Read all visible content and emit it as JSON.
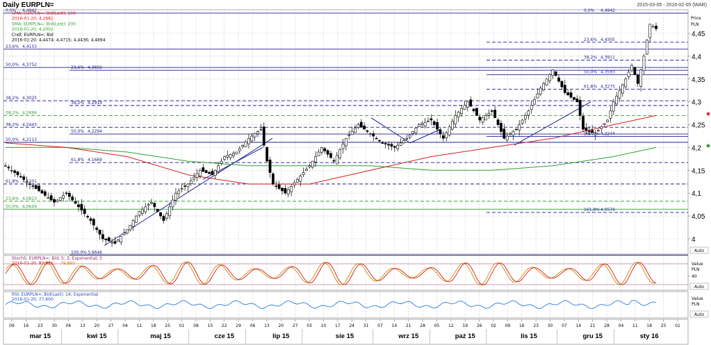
{
  "header": {
    "title": "Daily EURPLN=",
    "date_range": "2015-03-05 - 2016-02-05 (WAR)"
  },
  "legend_main": [
    {
      "text": "SMA; EURPLN=; Bid(Last); 100",
      "color": "#d02020"
    },
    {
      "text": "2016-01-20; 4,2682",
      "color": "#d02020"
    },
    {
      "text": "SMA; EURPLN=; Bid(Last); 200",
      "color": "#30a030"
    },
    {
      "text": "2016-01-20; 4,2002",
      "color": "#30a030"
    },
    {
      "text": "Cndl; EURPLN=; Bid",
      "color": "#000000"
    },
    {
      "text": "2016-01-20; 4,4474; 4,4715; 4,4436; 4,4694",
      "color": "#000000"
    }
  ],
  "price_axis": {
    "title_line1": "Price",
    "title_line2": "PLN",
    "ticks": [
      {
        "v": 4.45,
        "label": "4,45"
      },
      {
        "v": 4.4,
        "label": "4,4"
      },
      {
        "v": 4.35,
        "label": "4,35"
      },
      {
        "v": 4.3,
        "label": "4,3"
      },
      {
        "v": 4.25,
        "label": "4,25"
      },
      {
        "v": 4.2,
        "label": "4,2"
      },
      {
        "v": 4.15,
        "label": "4,15"
      },
      {
        "v": 4.1,
        "label": "4,1"
      },
      {
        "v": 4.05,
        "label": "4,05"
      },
      {
        "v": 4.0,
        "label": "4"
      }
    ],
    "auto_label": "Auto",
    "ylim": [
      3.96,
      4.5
    ]
  },
  "fib_levels": [
    {
      "v": 4.4942,
      "label": "0,0%",
      "value_label": "4,4942",
      "color": "#1f1f8f",
      "style": "solid"
    },
    {
      "v": 4.4942,
      "label": "0,0%",
      "value_label": "4,4942",
      "color": "#1f1f8f",
      "style": "solid",
      "side": "right"
    },
    {
      "v": 4.4153,
      "label": "23,6%",
      "value_label": "4,4153",
      "color": "#1f1f8f",
      "style": "solid"
    },
    {
      "v": 4.4305,
      "label": "23,6%",
      "value_label": "4,4305",
      "color": "#1f1f8f",
      "style": "dash",
      "side": "right"
    },
    {
      "v": 4.3911,
      "label": "38,2%",
      "value_label": "4,3911",
      "color": "#1f1f8f",
      "style": "dash",
      "side": "right"
    },
    {
      "v": 4.3752,
      "label": "50,0%",
      "value_label": "4,3752",
      "color": "#1f1f8f",
      "style": "solid"
    },
    {
      "v": 4.3692,
      "label": "23,6%",
      "value_label": "4,3692",
      "color": "#1f1f8f",
      "style": "solid",
      "side": "mid"
    },
    {
      "v": 4.3593,
      "label": "50,0%",
      "value_label": "4,3593",
      "color": "#1f1f8f",
      "style": "solid",
      "side": "right"
    },
    {
      "v": 4.3275,
      "label": "61,8%",
      "value_label": "4,3275",
      "color": "#1f1f8f",
      "style": "dash",
      "side": "right"
    },
    {
      "v": 4.3025,
      "label": "38,2%",
      "value_label": "4,3025",
      "color": "#1f1f8f",
      "style": "dash"
    },
    {
      "v": 4.2919,
      "label": "38,2%",
      "value_label": "4,2919",
      "color": "#1f1f8f",
      "style": "dash",
      "side": "mid"
    },
    {
      "v": 4.2699,
      "label": "38,2%",
      "value_label": "4,2699",
      "color": "#30a030",
      "style": "dash"
    },
    {
      "v": 4.2443,
      "label": "38,2%",
      "value_label": "4,2443",
      "color": "#1f1f8f",
      "style": "dash"
    },
    {
      "v": 4.2294,
      "label": "50,0%",
      "value_label": "4,2294",
      "color": "#1f1f8f",
      "style": "solid",
      "side": "mid"
    },
    {
      "v": 4.2244,
      "label": "100,0%",
      "value_label": "4,2244",
      "color": "#1f1f8f",
      "style": "solid",
      "side": "right"
    },
    {
      "v": 4.2113,
      "label": "50,0%",
      "value_label": "4,2113",
      "color": "#1f1f8f",
      "style": "solid"
    },
    {
      "v": 4.1669,
      "label": "61,8%",
      "value_label": "4,1669",
      "color": "#1f1f8f",
      "style": "dash",
      "side": "mid"
    },
    {
      "v": 4.1201,
      "label": "61,8%",
      "value_label": "4,1201",
      "color": "#1f1f8f",
      "style": "dash"
    },
    {
      "v": 4.0823,
      "label": "23,6%",
      "value_label": "4,0823",
      "color": "#30a030",
      "style": "dash"
    },
    {
      "v": 4.0649,
      "label": "50,0%",
      "value_label": "4,0649",
      "color": "#30a030",
      "style": "solid"
    },
    {
      "v": 4.0576,
      "label": "161,8%",
      "value_label": "4,0576",
      "color": "#1f1f8f",
      "style": "dash",
      "side": "right"
    },
    {
      "v": 3.9646,
      "label": "100,0%",
      "value_label": "3,9646",
      "color": "#1f1f8f",
      "style": "solid",
      "side": "mid"
    }
  ],
  "stoch_panel": {
    "legend_line1": "StochS; EURPLN=; Bid; 5; 3; Exponential; 3",
    "legend_line2_a": "2016-01-20; 80,821;",
    "legend_line2_b": "79,893",
    "axis_title1": "Value",
    "axis_title2": "PLN",
    "tick_label": "40",
    "auto_label": "Auto"
  },
  "rsi_panel": {
    "legend_line1": "RSI; EURPLN=; Bid(Last); 14; Exponential",
    "legend_line2": "2016-01-20; 77,600",
    "axis_title1": "Value",
    "axis_title2": "PLN",
    "auto_label": "Auto"
  },
  "x_axis": {
    "day_ticks": [
      "09",
      "16",
      "23",
      "30",
      "06",
      "13",
      "20",
      "27",
      "04",
      "11",
      "18",
      "25",
      "01",
      "08",
      "15",
      "22",
      "29",
      "06",
      "13",
      "20",
      "27",
      "03",
      "10",
      "17",
      "24",
      "31",
      "07",
      "14",
      "21",
      "28",
      "05",
      "12",
      "19",
      "26",
      "02",
      "09",
      "16",
      "23",
      "30",
      "07",
      "14",
      "21",
      "28",
      "04",
      "11",
      "18",
      "25",
      "01"
    ],
    "months": [
      "mar 15",
      "kwi 15",
      "maj 15",
      "cze 15",
      "lip 15",
      "sie 15",
      "wrz 15",
      "paź 15",
      "lis 15",
      "gru 15",
      "sty 16"
    ]
  },
  "chart_data": {
    "type": "candlestick",
    "title": "Daily EURPLN=",
    "x_range": [
      "2015-03-05",
      "2016-02-05"
    ],
    "ylim": [
      3.96,
      4.5
    ],
    "grid": true,
    "series": [
      {
        "name": "Cndl; EURPLN=; Bid",
        "last_ohlc": [
          4.4474,
          4.4715,
          4.4436,
          4.4694
        ]
      },
      {
        "name": "SMA; EURPLN=; Bid(Last); 100",
        "last": 4.2682,
        "color": "#d02020"
      },
      {
        "name": "SMA; EURPLN=; Bid(Last); 200",
        "last": 4.2002,
        "color": "#30a030"
      }
    ],
    "close_path": [
      [
        0,
        4.16
      ],
      [
        4,
        4.14
      ],
      [
        8,
        4.12
      ],
      [
        12,
        4.1
      ],
      [
        16,
        4.08
      ],
      [
        20,
        4.1
      ],
      [
        24,
        4.07
      ],
      [
        28,
        4.04
      ],
      [
        32,
        4.0
      ],
      [
        36,
        3.99
      ],
      [
        40,
        4.02
      ],
      [
        44,
        4.06
      ],
      [
        48,
        4.08
      ],
      [
        52,
        4.04
      ],
      [
        56,
        4.1
      ],
      [
        60,
        4.12
      ],
      [
        64,
        4.15
      ],
      [
        68,
        4.14
      ],
      [
        72,
        4.18
      ],
      [
        76,
        4.19
      ],
      [
        80,
        4.22
      ],
      [
        84,
        4.24
      ],
      [
        86,
        4.17
      ],
      [
        88,
        4.12
      ],
      [
        92,
        4.1
      ],
      [
        96,
        4.13
      ],
      [
        100,
        4.16
      ],
      [
        104,
        4.2
      ],
      [
        108,
        4.17
      ],
      [
        112,
        4.22
      ],
      [
        116,
        4.25
      ],
      [
        120,
        4.23
      ],
      [
        124,
        4.21
      ],
      [
        128,
        4.2
      ],
      [
        132,
        4.22
      ],
      [
        136,
        4.25
      ],
      [
        140,
        4.26
      ],
      [
        144,
        4.22
      ],
      [
        148,
        4.27
      ],
      [
        152,
        4.3
      ],
      [
        156,
        4.26
      ],
      [
        160,
        4.28
      ],
      [
        164,
        4.22
      ],
      [
        168,
        4.24
      ],
      [
        172,
        4.28
      ],
      [
        176,
        4.33
      ],
      [
        180,
        4.37
      ],
      [
        184,
        4.32
      ],
      [
        188,
        4.3
      ],
      [
        190,
        4.24
      ],
      [
        194,
        4.23
      ],
      [
        198,
        4.26
      ],
      [
        200,
        4.3
      ],
      [
        204,
        4.35
      ],
      [
        206,
        4.38
      ],
      [
        208,
        4.34
      ],
      [
        210,
        4.4
      ],
      [
        212,
        4.47
      ],
      [
        214,
        4.46
      ]
    ],
    "close_path_x_max": 214,
    "sma100_path": [
      [
        0,
        4.21
      ],
      [
        20,
        4.2
      ],
      [
        40,
        4.18
      ],
      [
        60,
        4.14
      ],
      [
        80,
        4.12
      ],
      [
        100,
        4.12
      ],
      [
        120,
        4.15
      ],
      [
        140,
        4.18
      ],
      [
        160,
        4.2
      ],
      [
        180,
        4.22
      ],
      [
        200,
        4.25
      ],
      [
        214,
        4.27
      ]
    ],
    "sma200_path": [
      [
        0,
        4.2
      ],
      [
        20,
        4.2
      ],
      [
        40,
        4.19
      ],
      [
        60,
        4.17
      ],
      [
        80,
        4.16
      ],
      [
        100,
        4.16
      ],
      [
        120,
        4.16
      ],
      [
        140,
        4.15
      ],
      [
        160,
        4.15
      ],
      [
        180,
        4.16
      ],
      [
        200,
        4.18
      ],
      [
        214,
        4.2
      ]
    ],
    "stoch_last": [
      80.821,
      79.893
    ],
    "rsi_last": 77.6
  }
}
